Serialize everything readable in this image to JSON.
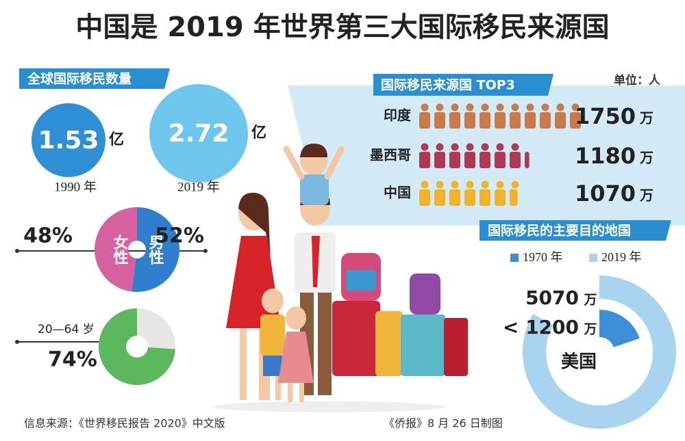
{
  "title": "中国是 2019 年世界第三大国际移民来源国",
  "global_migrants": {
    "heading": "全球国际移民数量",
    "items": [
      {
        "value": 1.53,
        "unit": "亿",
        "year": "1990 年",
        "color": "#2f8fd6"
      },
      {
        "value": 2.72,
        "unit": "亿",
        "year": "2019 年",
        "color": "#6ec6ee"
      }
    ]
  },
  "gender": {
    "segments": [
      {
        "name": "女性",
        "value": 48,
        "label": "48%",
        "color": "#d6619f"
      },
      {
        "name": "男性",
        "value": 52,
        "label": "52%",
        "color": "#2f7fce"
      }
    ]
  },
  "age": {
    "name": "20—64 岁",
    "value": 74,
    "label": "74%",
    "color": "#5cb85c"
  },
  "top3": {
    "heading": "国际移民来源国 TOP3",
    "unit_note": "单位：人",
    "rows": [
      {
        "country": "印度",
        "value": 1750,
        "unit": "万",
        "color": "#c97a4a"
      },
      {
        "country": "墨西哥",
        "value": 1180,
        "unit": "万",
        "color": "#b03a55"
      },
      {
        "country": "中国",
        "value": 1070,
        "unit": "万",
        "color": "#f2b227"
      }
    ]
  },
  "destinations": {
    "heading": "国际移民的主要目的地国",
    "country": "美国",
    "series": [
      {
        "name": "1970 年",
        "value": 1200,
        "label": "< 1200",
        "unit": "万",
        "color": "#3a8fd8"
      },
      {
        "name": "2019 年",
        "value": 5070,
        "unit": "万",
        "color": "#a8d4f0"
      }
    ]
  },
  "footer": {
    "source": "信息来源：《世界移民报告 2020》中文版",
    "credit": "《侨报》8 月 26 日制图"
  }
}
